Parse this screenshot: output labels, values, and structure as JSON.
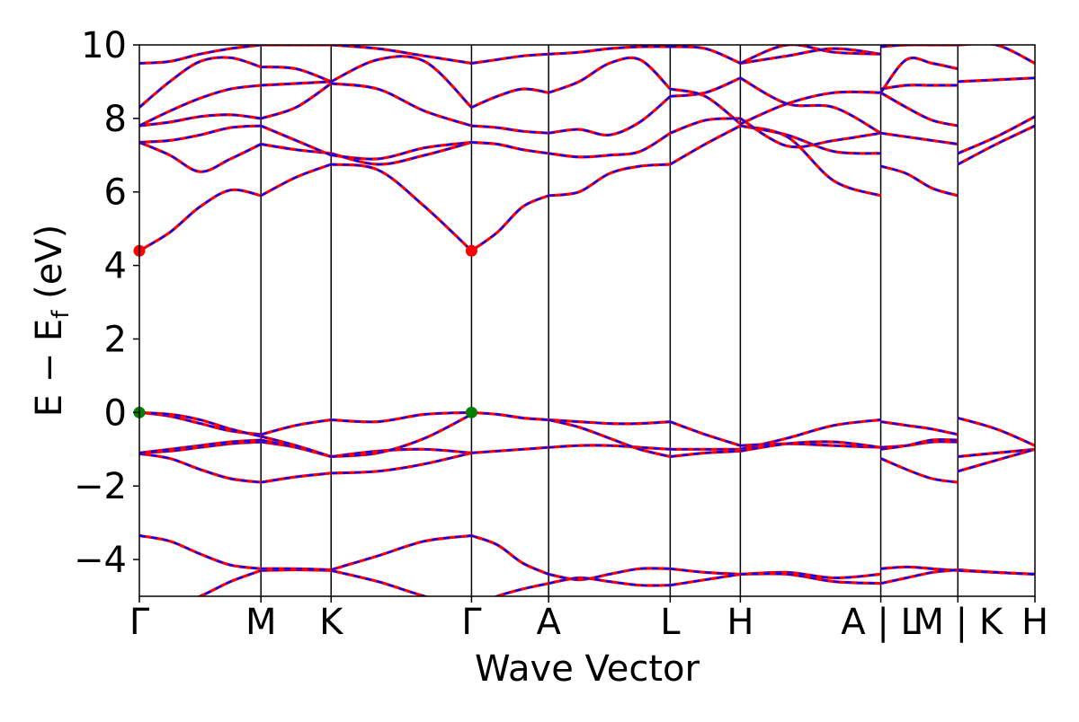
{
  "chart_data": {
    "type": "line",
    "title": "",
    "xlabel": "Wave Vector",
    "ylabel_main": "E − E",
    "ylabel_sub": "f",
    "ylabel_unit": " (eV)",
    "ylim": [
      -5,
      10
    ],
    "yticks": [
      {
        "v": 10,
        "label": "10"
      },
      {
        "v": 8,
        "label": "8"
      },
      {
        "v": 6,
        "label": "6"
      },
      {
        "v": 4,
        "label": "4"
      },
      {
        "v": 2,
        "label": "2"
      },
      {
        "v": 0,
        "label": "0"
      },
      {
        "v": -2,
        "label": "−2"
      },
      {
        "v": -4,
        "label": "−4"
      }
    ],
    "kpoints": [
      {
        "k": 0.0,
        "label": "Γ"
      },
      {
        "k": 1.0,
        "label": "M"
      },
      {
        "k": 1.577,
        "label": "K"
      },
      {
        "k": 2.732,
        "label": "Γ"
      },
      {
        "k": 3.366,
        "label": "A"
      },
      {
        "k": 4.366,
        "label": "L"
      },
      {
        "k": 4.943,
        "label": "H"
      },
      {
        "k": 6.098,
        "label": "A | L"
      },
      {
        "k": 6.732,
        "label": "M | K"
      },
      {
        "k": 7.366,
        "label": "H"
      }
    ],
    "colors": {
      "primary": "#ff0000",
      "secondary": "#0000ff",
      "vbm": "#008000",
      "cbm": "#ff0000"
    },
    "grid": false,
    "grid_lines_at_kpoints": true,
    "cbm": [
      {
        "k": 0.0,
        "e": 4.4
      },
      {
        "k": 2.732,
        "e": 4.4
      }
    ],
    "vbm": [
      {
        "k": 0.0,
        "e": 0.0
      },
      {
        "k": 2.732,
        "e": 0.0
      }
    ],
    "segments": [
      {
        "k0": 0.0,
        "k1": 1.0,
        "bands": [
          [
            -5.6,
            -5.3,
            -5.0,
            -4.6,
            -4.3
          ],
          [
            -3.35,
            -3.5,
            -3.85,
            -4.15,
            -4.25
          ],
          [
            -1.12,
            -1.25,
            -1.55,
            -1.8,
            -1.9
          ],
          [
            -1.1,
            -1.05,
            -0.95,
            -0.85,
            -0.8
          ],
          [
            -1.1,
            -1.0,
            -0.9,
            -0.8,
            -0.75
          ],
          [
            0.0,
            -0.1,
            -0.3,
            -0.5,
            -0.6
          ],
          [
            0.0,
            -0.05,
            -0.2,
            -0.45,
            -0.65
          ],
          [
            4.4,
            4.9,
            5.6,
            6.05,
            5.9
          ],
          [
            7.35,
            7.0,
            6.55,
            6.9,
            7.3
          ],
          [
            7.35,
            7.4,
            7.55,
            7.75,
            7.8
          ],
          [
            7.8,
            7.9,
            8.05,
            8.1,
            8.0
          ],
          [
            7.8,
            8.2,
            8.55,
            8.8,
            8.9
          ],
          [
            8.3,
            9.0,
            9.55,
            9.65,
            9.4
          ],
          [
            9.5,
            9.55,
            9.75,
            9.9,
            10.0
          ]
        ]
      },
      {
        "k0": 1.0,
        "k1": 1.577,
        "bands": [
          [
            -4.3,
            -4.28,
            -4.3
          ],
          [
            -4.25,
            -4.25,
            -4.28
          ],
          [
            -1.9,
            -1.75,
            -1.65
          ],
          [
            -0.8,
            -0.95,
            -1.2
          ],
          [
            -0.75,
            -0.95,
            -1.2
          ],
          [
            -0.6,
            -0.35,
            -0.2
          ],
          [
            -0.65,
            -0.9,
            -1.2
          ],
          [
            5.9,
            6.4,
            6.75
          ],
          [
            7.3,
            7.15,
            7.05
          ],
          [
            7.8,
            7.4,
            7.0
          ],
          [
            8.0,
            8.3,
            8.95
          ],
          [
            8.9,
            8.95,
            9.0
          ],
          [
            9.4,
            9.35,
            9.0
          ],
          [
            10.0,
            10.0,
            10.0
          ]
        ]
      },
      {
        "k0": 1.577,
        "k1": 2.732,
        "bands": [
          [
            -4.3,
            -4.6,
            -5.0,
            -5.3
          ],
          [
            -4.28,
            -3.9,
            -3.5,
            -3.35
          ],
          [
            -1.65,
            -1.6,
            -1.4,
            -1.1
          ],
          [
            -1.2,
            -1.05,
            -1.0,
            -1.1
          ],
          [
            -1.2,
            -1.1,
            -0.7,
            -0.05
          ],
          [
            -0.2,
            -0.25,
            -0.05,
            0.0
          ],
          [
            6.75,
            6.6,
            5.6,
            4.4
          ],
          [
            7.05,
            6.75,
            7.0,
            7.35
          ],
          [
            7.0,
            6.9,
            7.2,
            7.35
          ],
          [
            8.95,
            8.8,
            8.2,
            7.8
          ],
          [
            9.0,
            9.6,
            9.55,
            8.3
          ],
          [
            10.0,
            9.9,
            9.7,
            9.5
          ]
        ]
      },
      {
        "k0": 2.732,
        "k1": 3.366,
        "bands": [
          [
            -3.35,
            -3.6,
            -4.1,
            -4.4
          ],
          [
            -5.3,
            -5.0,
            -4.8,
            -4.65
          ],
          [
            -1.1,
            -1.05,
            -1.0,
            -0.95
          ],
          [
            0.0,
            -0.05,
            -0.15,
            -0.2
          ],
          [
            4.4,
            4.9,
            5.6,
            5.9
          ],
          [
            7.35,
            7.3,
            7.15,
            7.05
          ],
          [
            7.8,
            7.75,
            7.65,
            7.6
          ],
          [
            8.3,
            8.6,
            8.8,
            8.7
          ],
          [
            9.5,
            9.6,
            9.7,
            9.75
          ]
        ]
      },
      {
        "k0": 3.366,
        "k1": 4.366,
        "bands": [
          [
            -4.4,
            -4.55,
            -4.4,
            -4.25,
            -4.25
          ],
          [
            -4.65,
            -4.5,
            -4.6,
            -4.7,
            -4.7
          ],
          [
            -0.95,
            -0.9,
            -0.9,
            -0.95,
            -1.0
          ],
          [
            -0.2,
            -0.25,
            -0.3,
            -0.3,
            -0.25
          ],
          [
            -0.2,
            -0.4,
            -0.7,
            -1.0,
            -1.2
          ],
          [
            5.9,
            6.0,
            6.5,
            6.7,
            6.75
          ],
          [
            7.05,
            6.95,
            7.0,
            7.1,
            7.6
          ],
          [
            7.6,
            7.7,
            7.55,
            7.9,
            8.6
          ],
          [
            8.7,
            9.0,
            9.5,
            9.6,
            8.8
          ],
          [
            9.75,
            9.8,
            9.9,
            9.95,
            9.95
          ]
        ]
      },
      {
        "k0": 4.366,
        "k1": 4.943,
        "bands": [
          [
            -4.25,
            -4.35,
            -4.4
          ],
          [
            -4.7,
            -4.55,
            -4.4
          ],
          [
            -1.0,
            -1.0,
            -1.0
          ],
          [
            -0.25,
            -0.6,
            -0.9
          ],
          [
            -1.2,
            -1.1,
            -1.05
          ],
          [
            6.75,
            7.3,
            7.8
          ],
          [
            7.6,
            7.95,
            8.0
          ],
          [
            8.6,
            8.7,
            9.1
          ],
          [
            8.8,
            8.6,
            7.85
          ],
          [
            9.95,
            9.9,
            9.5
          ]
        ]
      },
      {
        "k0": 4.943,
        "k1": 6.098,
        "bands": [
          [
            -4.4,
            -4.35,
            -4.5,
            -4.4
          ],
          [
            -4.4,
            -4.4,
            -4.6,
            -4.65
          ],
          [
            -1.0,
            -0.7,
            -0.35,
            -0.2
          ],
          [
            -0.9,
            -0.85,
            -0.9,
            -0.95
          ],
          [
            -1.05,
            -0.85,
            -0.8,
            -0.95
          ],
          [
            7.8,
            7.5,
            6.3,
            5.9
          ],
          [
            7.8,
            7.55,
            7.1,
            7.05
          ],
          [
            8.0,
            7.25,
            7.4,
            7.6
          ],
          [
            9.1,
            8.4,
            8.3,
            7.6
          ],
          [
            7.85,
            8.4,
            8.7,
            8.7
          ],
          [
            9.5,
            9.7,
            9.9,
            9.75
          ],
          [
            9.5,
            10.0,
            9.8,
            9.75
          ]
        ]
      },
      {
        "k0": 6.098,
        "k1": 6.732,
        "bands": [
          [
            -4.25,
            -4.2,
            -4.25,
            -4.3
          ],
          [
            -4.65,
            -4.5,
            -4.35,
            -4.28
          ],
          [
            -1.25,
            -1.55,
            -1.8,
            -1.9
          ],
          [
            -0.95,
            -0.9,
            -0.8,
            -0.8
          ],
          [
            -1.0,
            -0.9,
            -0.75,
            -0.75
          ],
          [
            -0.25,
            -0.35,
            -0.45,
            -0.6
          ],
          [
            6.7,
            6.5,
            6.1,
            5.9
          ],
          [
            7.6,
            7.5,
            7.4,
            7.3
          ],
          [
            8.7,
            8.3,
            7.95,
            7.8
          ],
          [
            8.8,
            8.9,
            8.9,
            8.9
          ],
          [
            8.7,
            9.6,
            9.5,
            9.35
          ],
          [
            9.95,
            10.0,
            10.0,
            10.0
          ]
        ]
      },
      {
        "k0": 6.732,
        "k1": 7.366,
        "bands": [
          [
            -4.28,
            -4.35,
            -4.4
          ],
          [
            -4.3,
            -4.35,
            -4.4
          ],
          [
            -1.2,
            -1.1,
            -1.0
          ],
          [
            -1.6,
            -1.3,
            -1.0
          ],
          [
            -0.15,
            -0.45,
            -0.9
          ],
          [
            6.75,
            7.3,
            7.8
          ],
          [
            7.05,
            7.5,
            8.05
          ],
          [
            9.0,
            9.05,
            9.1
          ],
          [
            10.0,
            10.0,
            9.5
          ]
        ]
      }
    ]
  }
}
